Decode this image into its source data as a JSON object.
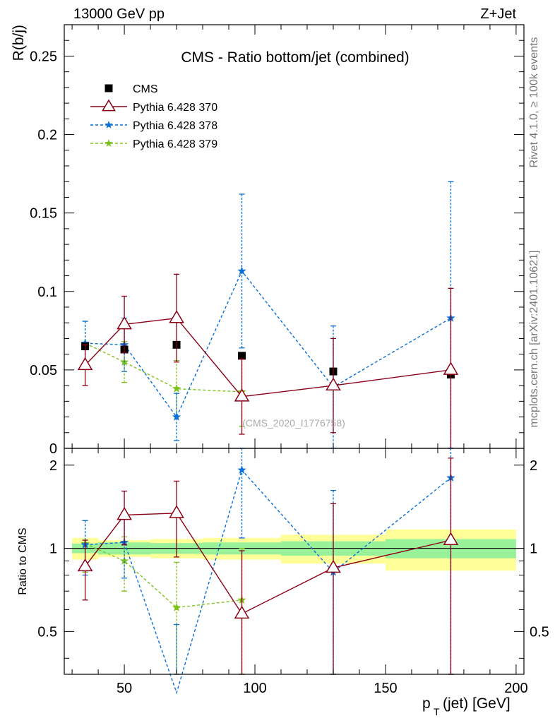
{
  "header": {
    "left": "13000 GeV pp",
    "right": "Z+Jet"
  },
  "side": {
    "rivet": "Rivet 4.1.0, ≥ 100k events",
    "source": "mcplots.cern.ch [arXiv:2401.10621]"
  },
  "colors": {
    "cms": "#000000",
    "p370": "#8b0016",
    "p378": "#0a6fd6",
    "p379": "#7ec21a",
    "band_inner": "#99f299",
    "band_outer": "#ffff99"
  },
  "chart_data": [
    {
      "type": "scatter",
      "panel": "main",
      "title": "CMS - Ratio bottom/jet (combined)",
      "watermark": "(CMS_2020_I1776758)",
      "ylabel": "R(b/j)",
      "xlim": [
        27,
        203
      ],
      "ylim": [
        0,
        0.27
      ],
      "yticks": [
        0,
        0.05,
        0.1,
        0.15,
        0.2,
        0.25
      ],
      "ytick_labels": [
        "0",
        "0.05",
        "0.1",
        "0.15",
        "0.2",
        "0.25"
      ],
      "legend_position": "top-left",
      "series": [
        {
          "name": "CMS",
          "key": "cms",
          "marker": "square",
          "line": "none",
          "x": [
            35,
            50,
            70,
            95,
            130,
            175
          ],
          "y": [
            0.065,
            0.063,
            0.066,
            0.059,
            0.049,
            0.047
          ]
        },
        {
          "name": "Pythia 6.428 370",
          "key": "p370",
          "marker": "triangle",
          "line": "solid",
          "x": [
            35,
            50,
            70,
            95,
            130,
            175
          ],
          "y": [
            0.053,
            0.079,
            0.083,
            0.033,
            0.04,
            0.05
          ],
          "err": [
            0.013,
            0.018,
            0.028,
            0.024,
            0.03,
            0.052
          ]
        },
        {
          "name": "Pythia 6.428 378",
          "key": "p378",
          "marker": "star",
          "line": "dashed",
          "x": [
            35,
            50,
            70,
            95,
            130,
            175
          ],
          "y": [
            0.067,
            0.066,
            0.02,
            0.113,
            0.039,
            0.083
          ],
          "err": [
            0.014,
            0.017,
            0.015,
            0.049,
            0.039,
            0.087
          ]
        },
        {
          "name": "Pythia 6.428 379",
          "key": "p379",
          "marker": "star",
          "line": "dashed",
          "x": [
            35,
            50,
            70,
            95
          ],
          "y": [
            0.067,
            0.055,
            0.038,
            0.036
          ],
          "err": [
            0.014,
            0.013,
            0.018,
            0.022
          ]
        }
      ]
    },
    {
      "type": "scatter",
      "panel": "ratio",
      "ylabel": "Ratio to CMS",
      "xlabel": "p_T (jet) [GeV]",
      "xlim": [
        27,
        203
      ],
      "ylim": [
        0.35,
        2.3
      ],
      "xticks": [
        50,
        100,
        150,
        200
      ],
      "xtick_labels": [
        "50",
        "100",
        "150",
        "200"
      ],
      "yticks": [
        0.5,
        1,
        2
      ],
      "ytick_labels": [
        "0.5",
        "1",
        "2"
      ],
      "reference_line": 1,
      "band": {
        "bins": [
          [
            30,
            40
          ],
          [
            40,
            60
          ],
          [
            60,
            80
          ],
          [
            80,
            110
          ],
          [
            110,
            150
          ],
          [
            150,
            200
          ]
        ],
        "inner": [
          0.04,
          0.05,
          0.045,
          0.05,
          0.06,
          0.08
        ],
        "outer": [
          0.09,
          0.07,
          0.08,
          0.09,
          0.12,
          0.17
        ]
      },
      "series": [
        {
          "name": "Pythia 6.428 370",
          "key": "p370",
          "marker": "triangle",
          "line": "solid",
          "x": [
            35,
            50,
            70,
            95,
            130,
            175
          ],
          "y": [
            0.86,
            1.32,
            1.34,
            0.58,
            0.85,
            1.07
          ],
          "err": [
            0.21,
            0.29,
            0.41,
            0.4,
            0.6,
            1.05
          ]
        },
        {
          "name": "Pythia 6.428 378",
          "key": "p378",
          "marker": "star",
          "line": "dashed",
          "x": [
            35,
            50,
            70,
            95,
            130,
            175
          ],
          "y": [
            1.03,
            1.05,
            0.3,
            1.92,
            0.82,
            1.8
          ],
          "err": [
            0.23,
            0.27,
            0.23,
            0.83,
            0.8,
            1.8
          ]
        },
        {
          "name": "Pythia 6.428 379",
          "key": "p379",
          "marker": "star",
          "line": "dashed",
          "x": [
            35,
            50,
            70,
            95
          ],
          "y": [
            1.04,
            0.9,
            0.61,
            0.65
          ],
          "err": [
            0.22,
            0.2,
            0.28,
            0.35
          ]
        }
      ]
    }
  ]
}
